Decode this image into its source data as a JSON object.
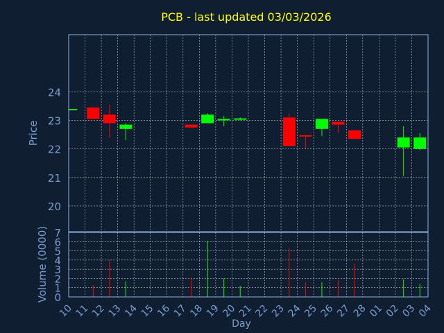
{
  "colors": {
    "background": "#0f1f31",
    "frame": "#8fb0e0",
    "grid": "#ffffff",
    "title": "#ffff00",
    "axis_text": "#7c9ccf",
    "up": "#00ff00",
    "down": "#ff0000"
  },
  "chart_data": {
    "type": "candlestick",
    "title": "PCB - last updated 03/03/2026",
    "xlabel": "Day",
    "price_panel": {
      "ylabel": "Price",
      "yticks": [
        20,
        21,
        22,
        23,
        24
      ],
      "ylim": [
        19.1,
        26.0
      ]
    },
    "volume_panel": {
      "ylabel": "Volume (0000)",
      "yticks": [
        0,
        1,
        2,
        3,
        4,
        5,
        6,
        7
      ],
      "ylim": [
        0,
        7
      ]
    },
    "x_tick_labels": [
      "10",
      "11",
      "12",
      "13",
      "14",
      "15",
      "16",
      "17",
      "18",
      "19",
      "20",
      "21",
      "22",
      "23",
      "24",
      "25",
      "26",
      "27",
      "28",
      "01",
      "02",
      "03",
      "04"
    ],
    "candles": [
      {
        "x": 0,
        "open": 23.38,
        "close": 23.4,
        "high": 23.4,
        "low": 23.38,
        "volume": 0,
        "dir": "up"
      },
      {
        "x": 1,
        "open": 23.45,
        "close": 23.05,
        "high": 23.45,
        "low": 23.05,
        "volume": 1.3,
        "dir": "down"
      },
      {
        "x": 2,
        "open": 23.2,
        "close": 22.9,
        "high": 23.55,
        "low": 22.4,
        "volume": 4.0,
        "dir": "down"
      },
      {
        "x": 3,
        "open": 22.7,
        "close": 22.85,
        "high": 22.9,
        "low": 22.3,
        "volume": 1.7,
        "dir": "up"
      },
      {
        "x": 7,
        "open": 22.85,
        "close": 22.75,
        "high": 22.85,
        "low": 22.75,
        "volume": 2.1,
        "dir": "down"
      },
      {
        "x": 8,
        "open": 22.9,
        "close": 23.2,
        "high": 23.25,
        "low": 22.9,
        "volume": 6.1,
        "dir": "up"
      },
      {
        "x": 9,
        "open": 23.0,
        "close": 23.05,
        "high": 23.15,
        "low": 22.8,
        "volume": 2.0,
        "dir": "up"
      },
      {
        "x": 10,
        "open": 23.03,
        "close": 23.07,
        "high": 23.1,
        "low": 23.0,
        "volume": 1.2,
        "dir": "up"
      },
      {
        "x": 13,
        "open": 23.1,
        "close": 22.1,
        "high": 23.25,
        "low": 22.1,
        "volume": 5.3,
        "dir": "down"
      },
      {
        "x": 14,
        "open": 22.48,
        "close": 22.45,
        "high": 22.48,
        "low": 22.0,
        "volume": 1.6,
        "dir": "down"
      },
      {
        "x": 15,
        "open": 22.7,
        "close": 23.05,
        "high": 23.05,
        "low": 22.45,
        "volume": 1.6,
        "dir": "up"
      },
      {
        "x": 16,
        "open": 22.95,
        "close": 22.85,
        "high": 22.95,
        "low": 22.55,
        "volume": 1.8,
        "dir": "down"
      },
      {
        "x": 17,
        "open": 22.65,
        "close": 22.35,
        "high": 22.65,
        "low": 22.35,
        "volume": 3.6,
        "dir": "down"
      },
      {
        "x": 20,
        "open": 22.05,
        "close": 22.4,
        "high": 22.8,
        "low": 21.05,
        "volume": 1.9,
        "dir": "up"
      },
      {
        "x": 21,
        "open": 22.0,
        "close": 22.4,
        "high": 22.55,
        "low": 21.95,
        "volume": 1.4,
        "dir": "up"
      }
    ],
    "grid": true
  }
}
